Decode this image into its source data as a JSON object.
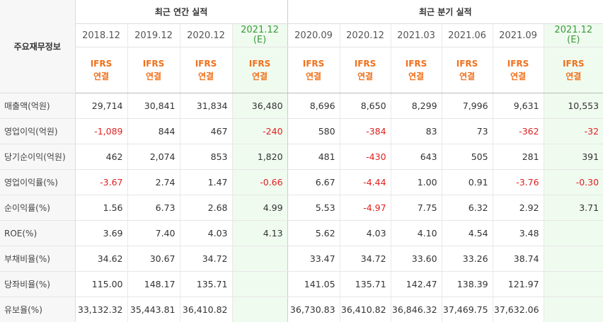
{
  "table_title": "주요재무정보",
  "groups": {
    "annual": "최근 연간 실적",
    "quarterly": "최근 분기 실적"
  },
  "periods": [
    {
      "label": "2018.12",
      "est": ""
    },
    {
      "label": "2019.12",
      "est": ""
    },
    {
      "label": "2020.12",
      "est": ""
    },
    {
      "label": "2021.12",
      "est": "(E)"
    },
    {
      "label": "2020.09",
      "est": ""
    },
    {
      "label": "2020.12",
      "est": ""
    },
    {
      "label": "2021.03",
      "est": ""
    },
    {
      "label": "2021.06",
      "est": ""
    },
    {
      "label": "2021.09",
      "est": ""
    },
    {
      "label": "2021.12",
      "est": "(E)"
    }
  ],
  "standard": {
    "line1": "IFRS",
    "line2": "연결"
  },
  "rows": [
    {
      "label": "매출액(억원)",
      "values": [
        "29,714",
        "30,841",
        "31,834",
        "36,480",
        "8,696",
        "8,650",
        "8,299",
        "7,996",
        "9,631",
        "10,553"
      ]
    },
    {
      "label": "영업이익(억원)",
      "values": [
        "-1,089",
        "844",
        "467",
        "-240",
        "580",
        "-384",
        "83",
        "73",
        "-362",
        "-32"
      ]
    },
    {
      "label": "당기순이익(억원)",
      "values": [
        "462",
        "2,074",
        "853",
        "1,820",
        "481",
        "-430",
        "643",
        "505",
        "281",
        "391"
      ]
    },
    {
      "label": "영업이익률(%)",
      "values": [
        "-3.67",
        "2.74",
        "1.47",
        "-0.66",
        "6.67",
        "-4.44",
        "1.00",
        "0.91",
        "-3.76",
        "-0.30"
      ]
    },
    {
      "label": "순이익률(%)",
      "values": [
        "1.56",
        "6.73",
        "2.68",
        "4.99",
        "5.53",
        "-4.97",
        "7.75",
        "6.32",
        "2.92",
        "3.71"
      ]
    },
    {
      "label": "ROE(%)",
      "values": [
        "3.69",
        "7.40",
        "4.03",
        "4.13",
        "5.62",
        "4.03",
        "4.10",
        "4.54",
        "3.48",
        ""
      ]
    },
    {
      "label": "부채비율(%)",
      "values": [
        "34.62",
        "30.67",
        "34.72",
        "",
        "33.47",
        "34.72",
        "33.60",
        "33.26",
        "38.74",
        ""
      ]
    },
    {
      "label": "당좌비율(%)",
      "values": [
        "115.00",
        "148.17",
        "135.71",
        "",
        "141.05",
        "135.71",
        "142.47",
        "138.39",
        "121.97",
        ""
      ]
    },
    {
      "label": "유보율(%)",
      "values": [
        "33,132.32",
        "35,443.81",
        "36,410.82",
        "",
        "36,730.83",
        "36,410.82",
        "36,846.32",
        "37,469.75",
        "37,632.06",
        ""
      ]
    }
  ],
  "colors": {
    "standard_text": "#f0701b",
    "negative": "#e02020",
    "estimate_bg": "#f0fbf0",
    "estimate_text": "#3a9a3a"
  }
}
